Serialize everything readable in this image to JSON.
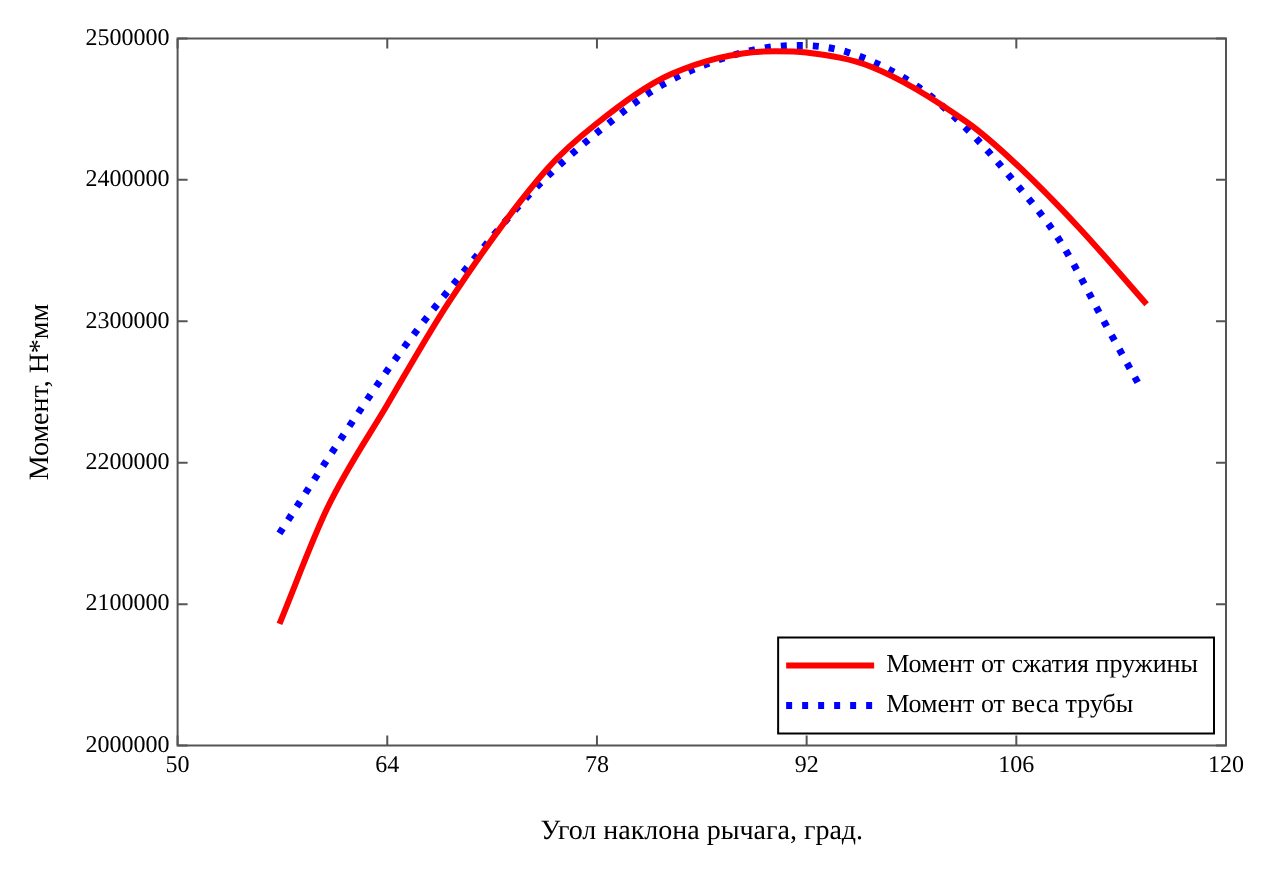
{
  "chart_data": {
    "type": "line",
    "xlabel": "Угол наклона рычага, град.",
    "ylabel": "Момент, Н*мм",
    "xlim": [
      50,
      120
    ],
    "xticks": [
      50,
      64,
      78,
      92,
      106,
      120
    ],
    "ylim": [
      2000000,
      2500000
    ],
    "yticks": [
      2000000,
      2100000,
      2200000,
      2300000,
      2400000,
      2500000
    ],
    "grid": false,
    "legend": "bottom right",
    "marker": "none",
    "series": [
      {
        "name": "Момент от сжатия пружины",
        "color": "#ff0000",
        "line_style": "solid",
        "x": [
          56.8,
          60,
          64,
          68.2,
          74.7,
          78,
          83,
          89.9,
          92,
          96.3,
          102.8,
          105.8,
          110.2,
          114.7
        ],
        "values": [
          2086000,
          2168000,
          2241000,
          2315000,
          2408000,
          2440000,
          2475000,
          2491000,
          2490000,
          2480000,
          2440000,
          2413000,
          2366000,
          2312000
        ]
      },
      {
        "name": "Момент от веса трубы",
        "color": "#0000ff",
        "line_style": "dotted",
        "x": [
          56.8,
          61.1,
          64.8,
          69.1,
          73.7,
          78.2,
          82.5,
          88.1,
          91.6,
          94.8,
          99.4,
          102.6,
          105.6,
          108.9,
          111.9,
          114.3
        ],
        "values": [
          2150000,
          2220000,
          2277000,
          2335000,
          2392000,
          2435000,
          2468000,
          2491000,
          2495000,
          2490000,
          2466000,
          2437000,
          2402000,
          2357000,
          2299000,
          2253000
        ]
      }
    ]
  }
}
